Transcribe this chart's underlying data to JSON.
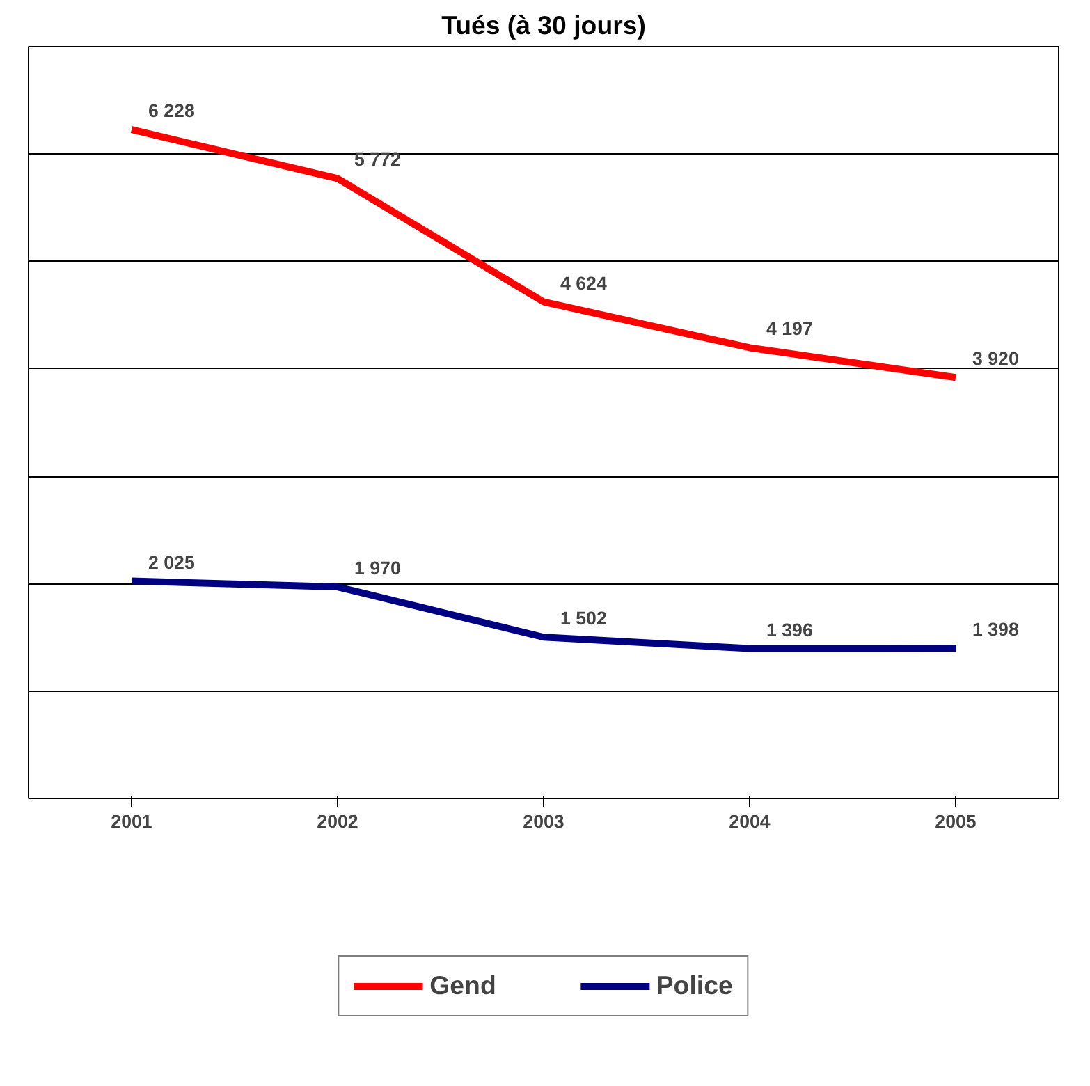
{
  "chart_data": {
    "type": "line",
    "title": "Tués (à 30 jours)",
    "categories": [
      "2001",
      "2002",
      "2003",
      "2004",
      "2005"
    ],
    "series": [
      {
        "name": "Gend",
        "color": "#ff0000",
        "values": [
          6228,
          5772,
          4624,
          4197,
          3920
        ],
        "value_labels": [
          "6 228",
          "5 772",
          "4 624",
          "4 197",
          "3 920"
        ]
      },
      {
        "name": "Police",
        "color": "#000080",
        "values": [
          2025,
          1970,
          1502,
          1396,
          1398
        ],
        "value_labels": [
          "2 025",
          "1 970",
          "1 502",
          "1 396",
          "1 398"
        ]
      }
    ],
    "ylim": [
      0,
      7000
    ],
    "yticks": [
      {
        "value": 0,
        "label": null
      },
      {
        "value": 1000,
        "label": null
      },
      {
        "value": 2000,
        "label": null
      },
      {
        "value": 3000,
        "label": null
      },
      {
        "value": 4000,
        "label": null
      },
      {
        "value": 5000,
        "label": null
      },
      {
        "value": 6000,
        "label": null
      },
      {
        "value": 7000,
        "label": null
      }
    ],
    "tick_labels": "x",
    "grid": "y",
    "legend": "bottom",
    "marker": "none",
    "line_style": "solid"
  }
}
